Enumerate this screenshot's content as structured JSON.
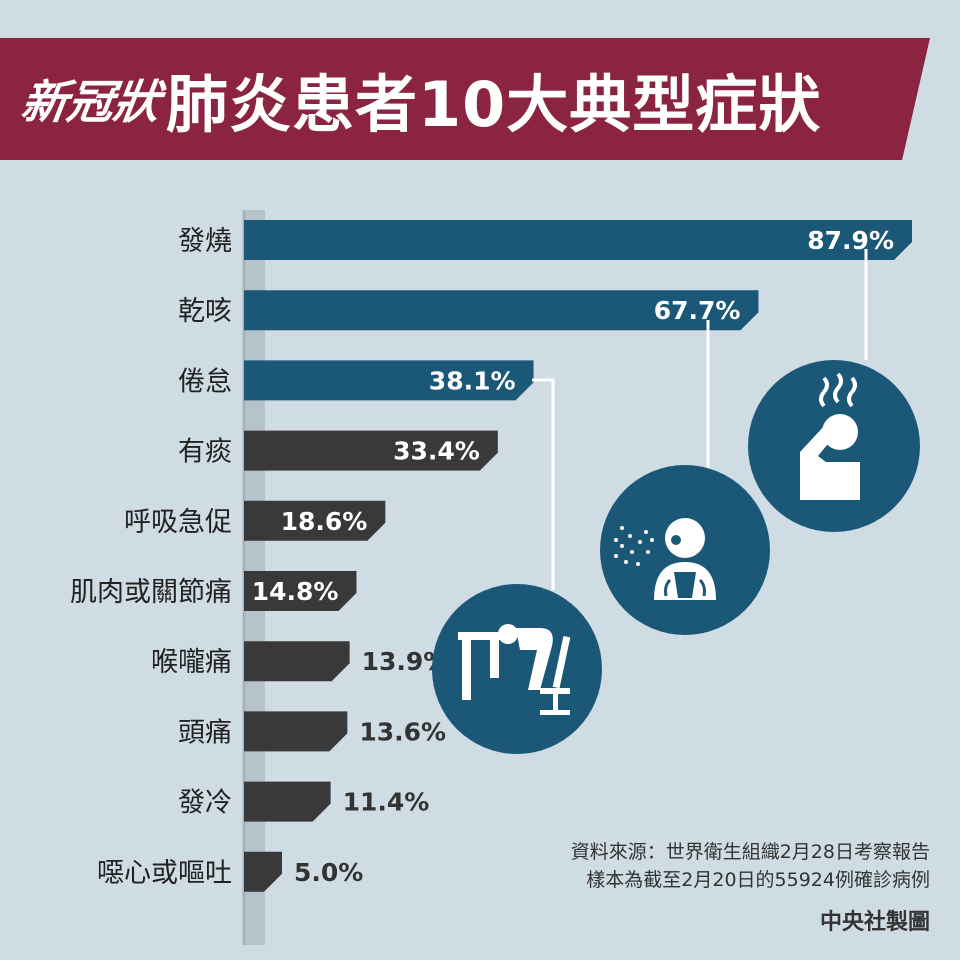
{
  "title": {
    "prefix": "新冠狀",
    "main": "肺炎患者10大典型症狀"
  },
  "chart_data": {
    "type": "bar",
    "orientation": "horizontal",
    "categories": [
      "發燒",
      "乾咳",
      "倦怠",
      "有痰",
      "呼吸急促",
      "肌肉或關節痛",
      "喉嚨痛",
      "頭痛",
      "發冷",
      "噁心或嘔吐"
    ],
    "values": [
      87.9,
      67.7,
      38.1,
      33.4,
      18.6,
      14.8,
      13.9,
      13.6,
      11.4,
      5.0
    ],
    "value_labels": [
      "87.9%",
      "67.7%",
      "38.1%",
      "33.4%",
      "18.6%",
      "14.8%",
      "13.9%",
      "13.6%",
      "11.4%",
      "5.0%"
    ],
    "unit": "%",
    "xlim": [
      0,
      100
    ],
    "grid": false,
    "colors": {
      "highlight": "#1b5878",
      "normal": "#393939",
      "axis": "#a8b4bc"
    },
    "highlighted_count": 3
  },
  "illustrations": [
    {
      "name": "fever-icon",
      "for": "發燒"
    },
    {
      "name": "dry-cough-icon",
      "for": "乾咳"
    },
    {
      "name": "fatigue-icon",
      "for": "倦怠"
    }
  ],
  "source": {
    "line1": "資料來源：世界衛生組織2月28日考察報告",
    "line2": "樣本為截至2月20日的55924例確診病例"
  },
  "credit": "中央社製圖",
  "colors": {
    "banner": "#8b2440",
    "background": "#cfdce4",
    "circle": "#1b5878"
  }
}
